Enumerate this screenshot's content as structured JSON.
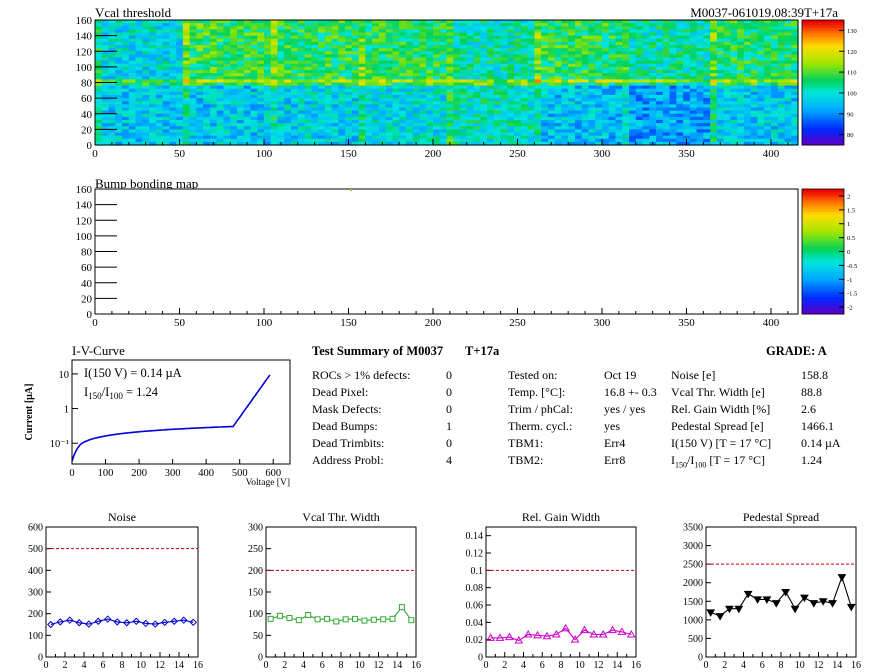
{
  "vcal_map": {
    "title": "Vcal threshold",
    "module_label": "M0037-061019.08:39T+17a",
    "xlim": [
      0,
      416
    ],
    "ylim": [
      0,
      160
    ],
    "xticks": [
      0,
      50,
      100,
      150,
      200,
      250,
      300,
      350,
      400
    ],
    "yticks": [
      0,
      20,
      40,
      60,
      80,
      100,
      120,
      140,
      160
    ],
    "palette_ticks": [
      "80",
      "90",
      "100",
      "110",
      "120",
      "130"
    ],
    "roc_base": [
      100,
      109,
      108,
      108,
      104,
      108,
      104,
      107,
      108,
      111,
      112,
      108,
      107,
      108,
      106,
      111
    ],
    "roc_low_base": [
      98,
      98,
      99,
      100,
      103,
      97,
      94,
      98,
      104,
      106,
      102,
      95,
      99,
      101,
      90,
      106
    ]
  },
  "bump_map": {
    "title": "Bump bonding map",
    "xlim": [
      0,
      416
    ],
    "ylim": [
      0,
      160
    ],
    "xticks": [
      0,
      50,
      100,
      150,
      200,
      250,
      300,
      350,
      400
    ],
    "yticks": [
      0,
      20,
      40,
      60,
      80,
      100,
      120,
      140,
      160
    ],
    "palette_ticks": [
      "-2",
      "-1.5",
      "-1",
      "-0.5",
      "0",
      "0.5",
      "1",
      "1.5",
      "2"
    ]
  },
  "iv_curve": {
    "title": "I-V-Curve",
    "xlabel": "Voltage [V]",
    "ylabel": "Current [µA]",
    "xticks": [
      "0",
      "100",
      "200",
      "300",
      "400",
      "500",
      "600"
    ],
    "yticks": [
      "10⁻¹",
      "1",
      "10"
    ],
    "note1": "I(150 V) = 0.14 µA",
    "note2_main": "I",
    "note2_sub1": "150",
    "note2_sep": "/I",
    "note2_sub2": "100",
    "note2_val": " = 1.24"
  },
  "summary": {
    "title": "Test Summary of M0037",
    "temp": "T+17a",
    "grade": "GRADE:  A",
    "col1_labels": [
      "ROCs > 1% defects:",
      "Dead Pixel:",
      "Mask Defects:",
      "Dead Bumps:",
      "Dead Trimbits:",
      "Address Probl:"
    ],
    "col1_values": [
      "0",
      "0",
      "0",
      "1",
      "0",
      "4"
    ],
    "col2_labels": [
      "Tested on:",
      "Temp. [°C]:",
      "Trim / phCal:",
      "Therm. cycl.:",
      "TBM1:",
      "TBM2:"
    ],
    "col2_values": [
      "Oct 19",
      "16.8 +- 0.3",
      "yes / yes",
      "yes",
      "Err4",
      "Err8"
    ],
    "col3_labels": [
      "Noise [e]",
      "Vcal Thr. Width [e]",
      "Rel. Gain Width [%]",
      "Pedestal Spread [e]",
      "I(150 V) [T = 17 °C]"
    ],
    "col3_last_label": [
      "I",
      "150",
      "/I",
      "100",
      "  [T = 17 °C]"
    ],
    "col3_values": [
      "158.8",
      "88.8",
      "2.6",
      "1466.1",
      "0.14 µA",
      "1.24"
    ]
  },
  "chart_data": [
    {
      "type": "line",
      "title": "Noise",
      "x": [
        0,
        1,
        2,
        3,
        4,
        5,
        6,
        7,
        8,
        9,
        10,
        11,
        12,
        13,
        14,
        15
      ],
      "values": [
        150,
        162,
        170,
        158,
        152,
        165,
        175,
        162,
        158,
        165,
        155,
        152,
        160,
        165,
        170,
        160
      ],
      "ylim": [
        0,
        600
      ],
      "yticks": [
        0,
        100,
        200,
        300,
        400,
        500,
        600
      ],
      "threshold": 500,
      "color": "#0000cc",
      "marker": "diamond"
    },
    {
      "type": "line",
      "title": "Vcal Thr. Width",
      "x": [
        0,
        1,
        2,
        3,
        4,
        5,
        6,
        7,
        8,
        9,
        10,
        11,
        12,
        13,
        14,
        15
      ],
      "values": [
        88,
        95,
        90,
        85,
        97,
        87,
        88,
        82,
        87,
        88,
        84,
        86,
        87,
        88,
        115,
        85
      ],
      "ylim": [
        0,
        300
      ],
      "yticks": [
        0,
        50,
        100,
        150,
        200,
        250,
        300
      ],
      "threshold": 200,
      "color": "#33aa33",
      "marker": "square"
    },
    {
      "type": "line",
      "title": "Rel. Gain Width",
      "x": [
        0,
        1,
        2,
        3,
        4,
        5,
        6,
        7,
        8,
        9,
        10,
        11,
        12,
        13,
        14,
        15
      ],
      "values": [
        0.022,
        0.022,
        0.023,
        0.019,
        0.026,
        0.025,
        0.024,
        0.026,
        0.033,
        0.02,
        0.031,
        0.026,
        0.026,
        0.031,
        0.029,
        0.026
      ],
      "ylim": [
        0,
        0.15
      ],
      "yticks": [
        0,
        0.02,
        0.04,
        0.06,
        0.08,
        0.1,
        0.12,
        0.14
      ],
      "threshold": 0.1,
      "color": "#cc00cc",
      "marker": "triangle-up"
    },
    {
      "type": "line",
      "title": "Pedestal Spread",
      "x": [
        0,
        1,
        2,
        3,
        4,
        5,
        6,
        7,
        8,
        9,
        10,
        11,
        12,
        13,
        14,
        15
      ],
      "values": [
        1200,
        1100,
        1300,
        1300,
        1700,
        1550,
        1550,
        1450,
        1750,
        1300,
        1600,
        1450,
        1500,
        1450,
        2150,
        1350
      ],
      "ylim": [
        0,
        3500
      ],
      "yticks": [
        0,
        500,
        1000,
        1500,
        2000,
        2500,
        3000,
        3500
      ],
      "threshold": 2500,
      "color": "#000000",
      "marker": "triangle-down"
    }
  ]
}
